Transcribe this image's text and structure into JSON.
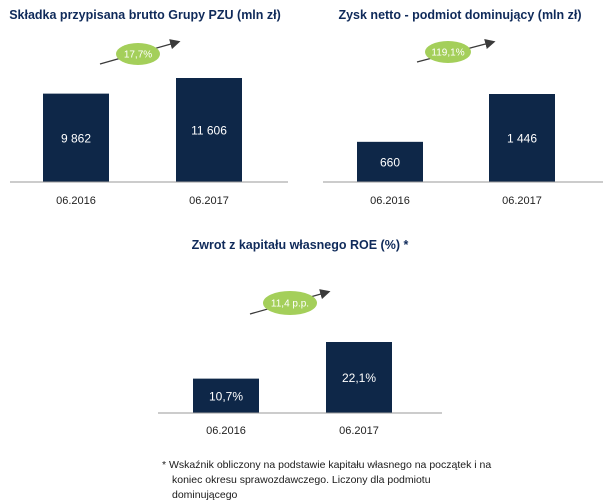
{
  "chart_data": [
    {
      "type": "bar",
      "title": "Składka przypisana brutto Grupy PZU (mln zł)",
      "categories": [
        "06.2016",
        "06.2017"
      ],
      "values": [
        9862,
        11606
      ],
      "value_labels": [
        "9 862",
        "11 606"
      ],
      "growth_badge": "17,7%",
      "bar_color": "#0e2748",
      "badge_color": "#a4cf5a"
    },
    {
      "type": "bar",
      "title": "Zysk netto - podmiot dominujący (mln zł)",
      "categories": [
        "06.2016",
        "06.2017"
      ],
      "values": [
        660,
        1446
      ],
      "value_labels": [
        "660",
        "1 446"
      ],
      "growth_badge": "119,1%",
      "bar_color": "#0e2748",
      "badge_color": "#a4cf5a"
    },
    {
      "type": "bar",
      "title": "Zwrot z kapitału własnego ROE (%) *",
      "categories": [
        "06.2016",
        "06.2017"
      ],
      "values": [
        10.7,
        22.1
      ],
      "value_labels": [
        "10,7%",
        "22,1%"
      ],
      "growth_badge": "11,4 p.p.",
      "bar_color": "#0e2748",
      "badge_color": "#a4cf5a"
    }
  ],
  "footnote": {
    "line1": "* Wskaźnik obliczony na podstawie kapitału własnego na początek i na",
    "line2": "koniec okresu sprawozdawczego. Liczony dla podmiotu dominującego"
  }
}
